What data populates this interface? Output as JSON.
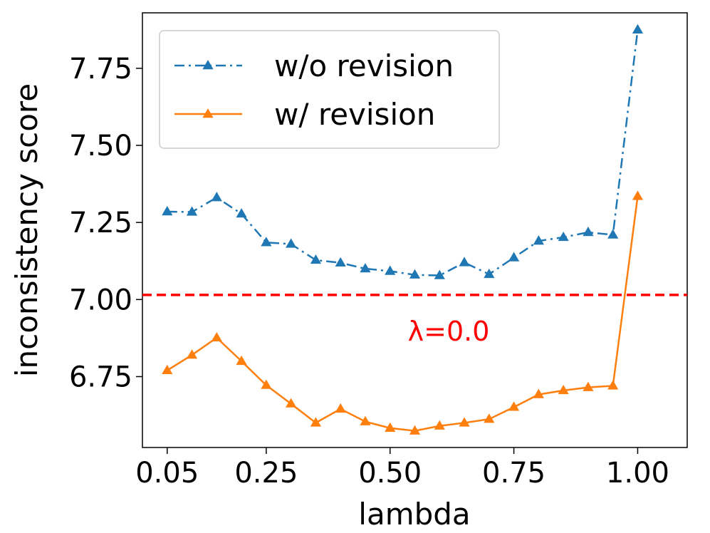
{
  "chart_data": {
    "type": "line",
    "x": [
      0.05,
      0.1,
      0.15,
      0.2,
      0.25,
      0.3,
      0.35,
      0.4,
      0.45,
      0.5,
      0.55,
      0.6,
      0.65,
      0.7,
      0.75,
      0.8,
      0.85,
      0.9,
      0.95,
      1.0
    ],
    "series": [
      {
        "name": "w/o revision",
        "color": "#1f77b4",
        "linestyle": "dashdot",
        "marker": "triangle",
        "values": [
          7.285,
          7.284,
          7.331,
          7.278,
          7.185,
          7.18,
          7.128,
          7.119,
          7.1,
          7.092,
          7.08,
          7.078,
          7.12,
          7.082,
          7.136,
          7.19,
          7.202,
          7.218,
          7.21,
          7.875
        ]
      },
      {
        "name": "w/ revision",
        "color": "#ff7f0e",
        "linestyle": "solid",
        "marker": "triangle",
        "values": [
          6.77,
          6.82,
          6.876,
          6.8,
          6.722,
          6.662,
          6.6,
          6.645,
          6.604,
          6.583,
          6.574,
          6.59,
          6.6,
          6.612,
          6.651,
          6.692,
          6.705,
          6.715,
          6.72,
          7.335
        ]
      }
    ],
    "reference_line": {
      "y": 7.015,
      "color": "#ff0000",
      "linestyle": "dashed",
      "label": "λ=0.0"
    },
    "xlabel": "lambda",
    "ylabel": "inconsistency score",
    "xticks": [
      0.05,
      0.25,
      0.5,
      0.75,
      1.0
    ],
    "xtick_labels": [
      "0.05",
      "0.25",
      "0.50",
      "0.75",
      "1.00"
    ],
    "yticks": [
      6.75,
      7.0,
      7.25,
      7.5,
      7.75
    ],
    "ytick_labels": [
      "6.75",
      "7.00",
      "7.25",
      "7.50",
      "7.75"
    ],
    "xlim": [
      0.0,
      1.1
    ],
    "ylim": [
      6.52,
      7.93
    ],
    "legend_position": "top-left",
    "grid": false
  }
}
